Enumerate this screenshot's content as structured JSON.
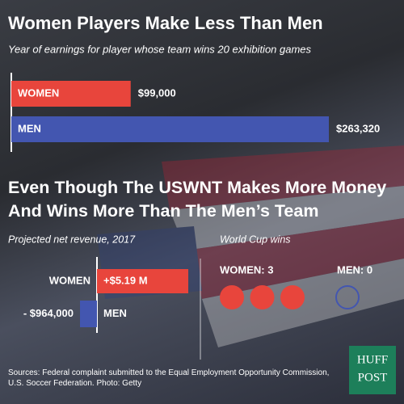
{
  "chart_data": [
    {
      "type": "hbar",
      "title": "Women Players Make Less Than Men",
      "subtitle": "Year of earnings for player whose team wins 20 exhibition games",
      "categories": [
        "WOMEN",
        "MEN"
      ],
      "values": [
        99000,
        263320
      ],
      "value_labels": [
        "$99,000",
        "$263,320"
      ],
      "colors": [
        "#e8453c",
        "#4356b0"
      ]
    },
    {
      "type": "diverging",
      "title": "Even Though The USWNT Makes More Money And Wins More Than The Men’s Team",
      "subtitle": "Projected net revenue, 2017",
      "categories": [
        "WOMEN",
        "MEN"
      ],
      "values": [
        5190000,
        -964000
      ],
      "value_labels": [
        "+$5.19 M",
        "- $964,000"
      ],
      "colors": [
        "#e8453c",
        "#4356b0"
      ]
    },
    {
      "type": "pictogram",
      "subtitle": "World Cup wins",
      "categories": [
        "WOMEN",
        "MEN"
      ],
      "values": [
        3,
        0
      ],
      "value_labels": [
        "WOMEN: 3",
        "MEN: 0"
      ],
      "colors": [
        "#e8453c",
        "#4356b0"
      ]
    }
  ],
  "source": "Sources: Federal complaint submitted to the Equal Employment Opportunity Commission, U.S. Soccer Federation. Photo: Getty",
  "logo": [
    "HUFF",
    "POST"
  ]
}
